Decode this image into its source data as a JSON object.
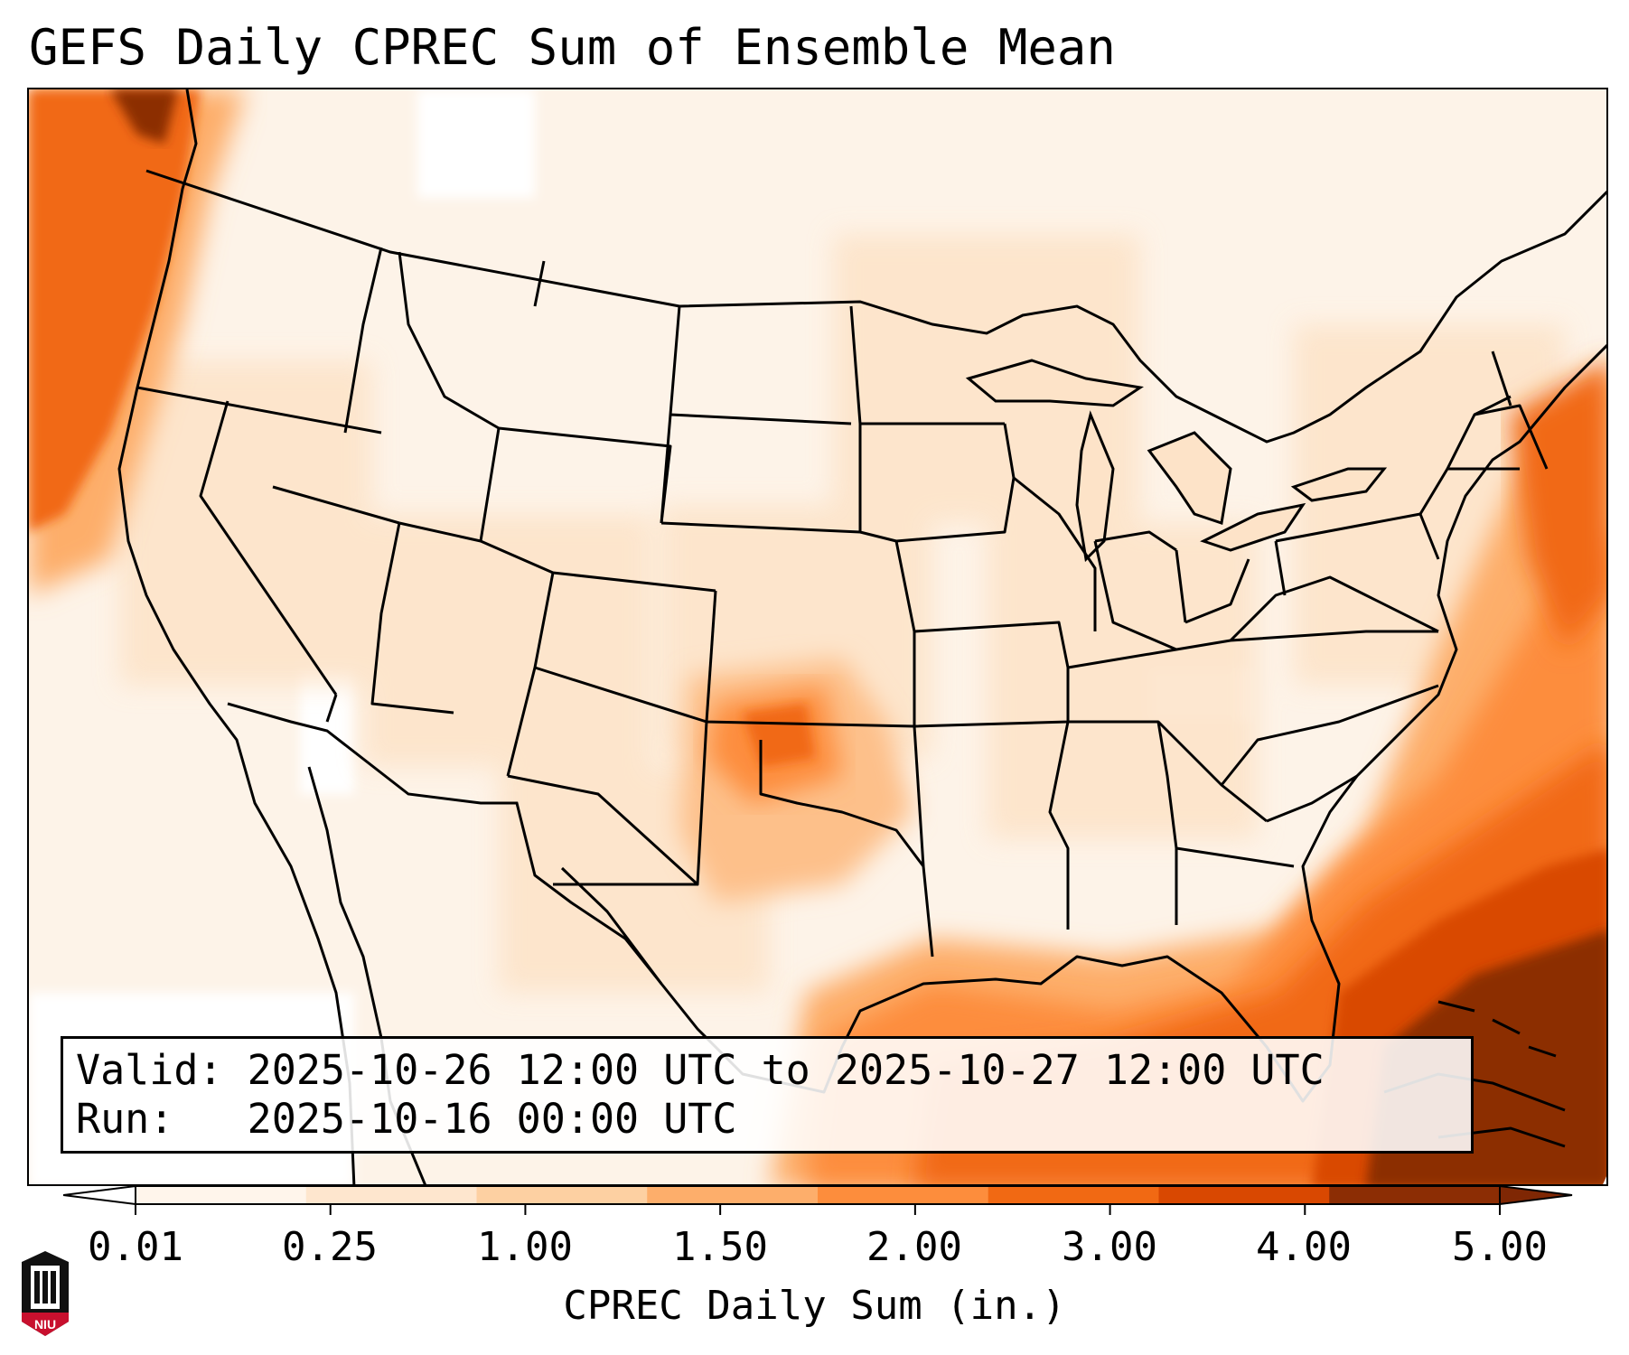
{
  "title": "GEFS Daily CPREC Sum of Ensemble Mean",
  "info": {
    "valid_line": "Valid: 2025-10-26 12:00 UTC to 2025-10-27 12:00 UTC",
    "run_line": "Run:   2025-10-16 00:00 UTC"
  },
  "colorbar": {
    "label": "CPREC Daily Sum (in.)",
    "ticks": [
      "0.01",
      "0.25",
      "1.00",
      "1.50",
      "2.00",
      "3.00",
      "4.00",
      "5.00"
    ],
    "colors": [
      "#fff5eb",
      "#fee6ce",
      "#fdd0a2",
      "#fdae6b",
      "#fd8d3c",
      "#f16913",
      "#d94801",
      "#8c2d04"
    ],
    "under_color": "#ffffff",
    "over_color": "#7f2704"
  },
  "logo": {
    "text": "NIU",
    "color": "#c8102e"
  }
}
